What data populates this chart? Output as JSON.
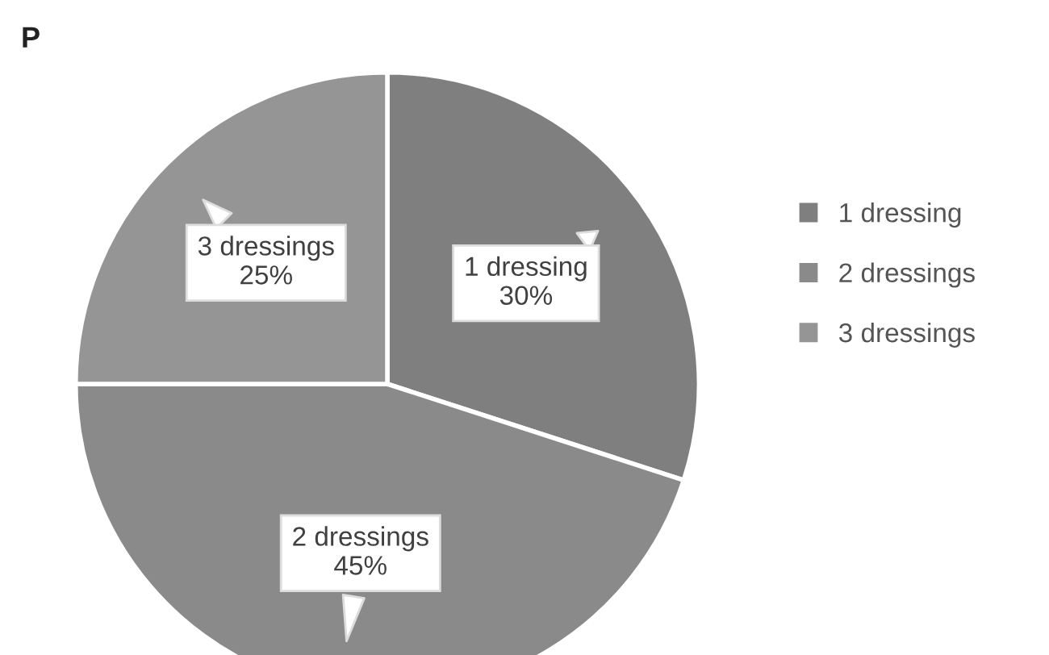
{
  "chart_data": {
    "type": "pie",
    "annotations": [
      "P"
    ],
    "categories": [
      "1 dressing",
      "2 dressings",
      "3 dressings"
    ],
    "values": [
      30,
      45,
      25
    ],
    "value_labels": [
      "30%",
      "45%",
      "25%"
    ],
    "colors": [
      "#7f7f7f",
      "#8a8a8a",
      "#959595"
    ],
    "legend": "right"
  }
}
